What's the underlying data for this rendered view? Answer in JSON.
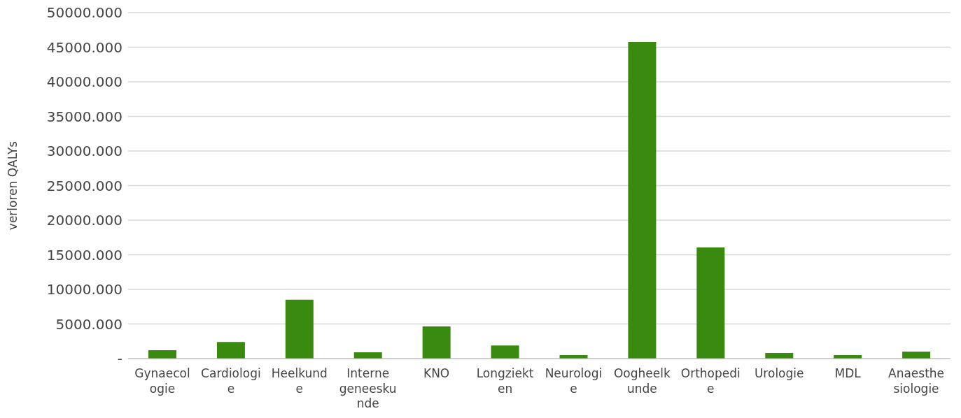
{
  "chart_data": {
    "type": "bar",
    "ylabel": "verloren QALYs",
    "categories": [
      "Gynaecologie",
      "Cardiologie",
      "Heelkunde",
      "Interne geneeskunde",
      "KNO",
      "Longziekten",
      "Neurologie",
      "Oogheelkunde",
      "Orthopedie",
      "Urologie",
      "MDL",
      "Anaesthesiologie"
    ],
    "values": [
      1200,
      2400,
      8500,
      900,
      4650,
      1900,
      500,
      45750,
      16050,
      800,
      500,
      1000
    ],
    "color": "#3a8a0f",
    "ylim": [
      0,
      50000
    ],
    "yticks": [
      {
        "value": 0,
        "label": "-"
      },
      {
        "value": 5000,
        "label": "5000.000"
      },
      {
        "value": 10000,
        "label": "10000.000"
      },
      {
        "value": 15000,
        "label": "15000.000"
      },
      {
        "value": 20000,
        "label": "20000.000"
      },
      {
        "value": 25000,
        "label": "25000.000"
      },
      {
        "value": 30000,
        "label": "30000.000"
      },
      {
        "value": 35000,
        "label": "35000.000"
      },
      {
        "value": 40000,
        "label": "40000.000"
      },
      {
        "value": 45000,
        "label": "45000.000"
      },
      {
        "value": 50000,
        "label": "50000.000"
      }
    ],
    "grid": "y"
  }
}
